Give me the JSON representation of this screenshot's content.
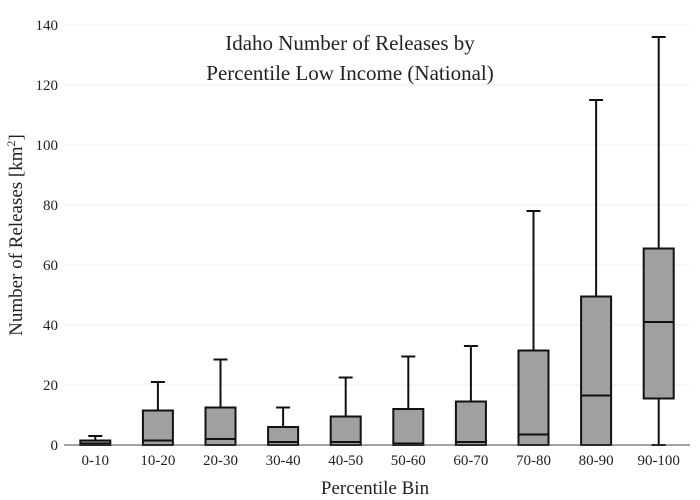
{
  "chart_data": {
    "type": "box",
    "title_lines": [
      "Idaho Number of Releases by",
      "Percentile Low Income (National)"
    ],
    "xlabel": "Percentile Bin",
    "ylabel_main": "Number of Releases  [km",
    "ylabel_sup": "2",
    "ylabel_end": "]",
    "ylim": [
      0,
      140
    ],
    "yticks": [
      0,
      20,
      40,
      60,
      80,
      100,
      120,
      140
    ],
    "grid": true,
    "categories": [
      "0-10",
      "10-20",
      "20-30",
      "30-40",
      "40-50",
      "50-60",
      "60-70",
      "70-80",
      "80-90",
      "90-100"
    ],
    "boxes": [
      {
        "min": 0,
        "q1": 0,
        "median": 0.5,
        "q3": 1.5,
        "max": 3
      },
      {
        "min": 0,
        "q1": 0,
        "median": 1.5,
        "q3": 11.5,
        "max": 21
      },
      {
        "min": 0,
        "q1": 0,
        "median": 2,
        "q3": 12.5,
        "max": 28.5
      },
      {
        "min": 0,
        "q1": 0,
        "median": 1,
        "q3": 6,
        "max": 12.5
      },
      {
        "min": 0,
        "q1": 0,
        "median": 1,
        "q3": 9.5,
        "max": 22.5
      },
      {
        "min": 0,
        "q1": 0,
        "median": 0.5,
        "q3": 12,
        "max": 29.5
      },
      {
        "min": 0,
        "q1": 0,
        "median": 1,
        "q3": 14.5,
        "max": 33
      },
      {
        "min": 0,
        "q1": 0,
        "median": 3.5,
        "q3": 31.5,
        "max": 78
      },
      {
        "min": 0,
        "q1": 0,
        "median": 16.5,
        "q3": 49.5,
        "max": 115
      },
      {
        "min": 0,
        "q1": 15.5,
        "median": 41,
        "q3": 65.5,
        "max": 136
      }
    ]
  }
}
